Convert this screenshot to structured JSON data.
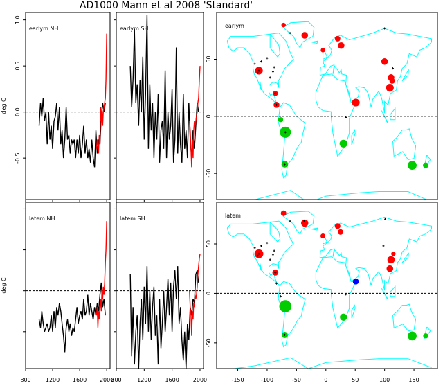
{
  "chart_data": [
    {
      "type": "line",
      "title": "AD1000 Mann et al 2008 'Standard'",
      "panel_label": "earlym NH",
      "ylabel": "deg C",
      "xlim": [
        800,
        2050
      ],
      "ylim": [
        -0.95,
        1.08
      ],
      "yticks": [
        "1.0",
        "0.5",
        "0.0",
        "-0.5"
      ],
      "xticks": [
        "800",
        "1200",
        "1600",
        "2000"
      ],
      "reference_line": 0,
      "series": [
        {
          "color": "#000000",
          "x_start": 1000,
          "x_step": 20,
          "values": [
            -0.15,
            0.1,
            -0.05,
            0.15,
            -0.1,
            0.0,
            -0.35,
            0.0,
            -0.3,
            -0.15,
            -0.4,
            -0.1,
            -0.05,
            0.1,
            -0.2,
            0.05,
            -0.35,
            -0.2,
            -0.5,
            -0.3,
            0.05,
            -0.3,
            -0.25,
            -0.45,
            -0.3,
            -0.35,
            -0.3,
            -0.5,
            -0.3,
            -0.45,
            -0.25,
            -0.5,
            -0.35,
            -0.15,
            -0.45,
            -0.3,
            -0.5,
            -0.4,
            -0.55,
            -0.3,
            -0.5,
            -0.6,
            -0.2,
            -0.45,
            -0.3,
            -0.35,
            -0.05,
            0.1,
            0.0,
            0.1
          ]
        },
        {
          "color": "#ff0000",
          "x_start": 1850,
          "x_step": 10,
          "values": [
            -0.4,
            -0.3,
            -0.35,
            -0.45,
            -0.25,
            -0.35,
            0.05,
            -0.1,
            0.05,
            -0.15,
            0.0,
            0.05,
            0.1,
            0.15,
            0.35,
            0.85
          ]
        }
      ]
    },
    {
      "type": "line",
      "panel_label": "earlym SH",
      "xlim": [
        800,
        2050
      ],
      "ylim": [
        -0.95,
        1.08
      ],
      "xticks": [
        "800",
        "1200",
        "1600",
        "2000"
      ],
      "reference_line": 0,
      "series": [
        {
          "color": "#000000",
          "x_start": 1000,
          "x_step": 20,
          "values": [
            0.5,
            0.05,
            0.35,
            0.9,
            0.1,
            0.3,
            -0.15,
            0.35,
            0.0,
            0.6,
            -0.3,
            0.2,
            1.05,
            -0.4,
            0.3,
            -0.2,
            0.1,
            -0.5,
            0.0,
            -0.3,
            0.2,
            -0.55,
            -0.2,
            -0.1,
            -0.4,
            0.45,
            -0.5,
            0.0,
            -0.3,
            -0.15,
            0.25,
            -0.55,
            -0.3,
            0.7,
            -0.45,
            0.0,
            -0.35,
            -0.55,
            0.2,
            -0.4,
            -0.2,
            -0.5,
            0.1,
            -0.3,
            -0.5,
            -0.2,
            -0.4,
            -0.15,
            0.1,
            0.0
          ]
        },
        {
          "color": "#ff0000",
          "x_start": 1850,
          "x_step": 10,
          "values": [
            -0.1,
            -0.2,
            -0.4,
            -0.6,
            -0.3,
            -0.5,
            -0.2,
            -0.1,
            -0.15,
            -0.1,
            -0.05,
            0.0,
            0.1,
            0.15,
            0.35,
            0.5
          ]
        }
      ]
    },
    {
      "type": "line",
      "panel_label": "latem NH",
      "ylabel": "deg C",
      "xlim": [
        800,
        2050
      ],
      "ylim": [
        -0.95,
        1.08
      ],
      "xticks": [
        "800",
        "1200",
        "1600",
        "2000"
      ],
      "reference_line": 0,
      "series": [
        {
          "color": "#000000",
          "x_start": 1000,
          "x_step": 20,
          "values": [
            -0.35,
            -0.45,
            -0.25,
            -0.4,
            -0.5,
            -0.45,
            -0.4,
            -0.5,
            -0.45,
            -0.3,
            -0.5,
            -0.25,
            -0.45,
            -0.2,
            -0.3,
            -0.15,
            -0.25,
            -0.4,
            -0.55,
            -0.75,
            -0.45,
            -0.35,
            -0.5,
            -0.4,
            -0.55,
            -0.45,
            -0.5,
            -0.35,
            -0.2,
            -0.4,
            -0.3,
            -0.25,
            -0.35,
            -0.1,
            -0.3,
            -0.25,
            -0.05,
            -0.3,
            -0.15,
            -0.25,
            -0.35,
            -0.2,
            -0.3,
            -0.15,
            -0.25,
            -0.05,
            0.1,
            -0.2,
            -0.1,
            -0.3
          ]
        },
        {
          "color": "#ff0000",
          "x_start": 1850,
          "x_step": 10,
          "values": [
            -0.3,
            -0.2,
            -0.45,
            -0.25,
            -0.35,
            -0.2,
            -0.1,
            -0.25,
            0.0,
            -0.1,
            0.05,
            -0.05,
            0.1,
            0.35,
            0.5,
            0.85
          ]
        }
      ]
    },
    {
      "type": "line",
      "panel_label": "latem SH",
      "xlim": [
        800,
        2050
      ],
      "ylim": [
        -0.95,
        1.08
      ],
      "xticks": [
        "800",
        "1200",
        "1600",
        "2000"
      ],
      "reference_line": 0,
      "series": [
        {
          "color": "#000000",
          "x_start": 1000,
          "x_step": 20,
          "values": [
            0.2,
            -0.8,
            -0.2,
            -0.9,
            -0.5,
            -0.3,
            -0.95,
            -0.4,
            -0.1,
            -0.6,
            0.05,
            -0.4,
            0.3,
            -0.5,
            0.0,
            -0.6,
            -0.2,
            0.05,
            -0.55,
            -0.3,
            -0.9,
            -0.1,
            -0.7,
            -0.4,
            0.0,
            -0.5,
            -0.2,
            0.15,
            -0.3,
            0.1,
            -0.5,
            0.05,
            0.25,
            -0.1,
            0.3,
            -0.4,
            -0.2,
            -0.6,
            -0.85,
            -0.5,
            -0.95,
            -0.4,
            -0.6,
            -0.2,
            -0.3,
            -0.1,
            -0.15,
            0.2,
            0.25,
            0.1
          ]
        },
        {
          "color": "#ff0000",
          "x_start": 1850,
          "x_step": 10,
          "values": [
            0.0,
            -0.2,
            -0.3,
            -0.55,
            -0.25,
            -0.35,
            -0.15,
            -0.2,
            -0.05,
            -0.1,
            -0.05,
            0.05,
            0.2,
            0.3,
            0.4,
            0.45
          ]
        }
      ]
    },
    {
      "type": "scatter",
      "panel_label": "earlym",
      "xlim": [
        -186,
        190
      ],
      "ylim": [
        -73,
        91
      ],
      "yticks": [
        "50",
        "0",
        "-50"
      ],
      "xticks": [
        "-150",
        "-100",
        "-50",
        "0",
        "50",
        "100",
        "150"
      ],
      "reference_line": 0,
      "coastline_color": "#00ffff",
      "points": [
        {
          "lon": -72,
          "lat": 80,
          "color": "#ff0000",
          "size": 1
        },
        {
          "lon": -36,
          "lat": 71,
          "color": "#ff0000",
          "size": 2
        },
        {
          "lon": 20,
          "lat": 68,
          "color": "#ff0000",
          "size": 1.5
        },
        {
          "lon": 26,
          "lat": 62,
          "color": "#ff0000",
          "size": 2
        },
        {
          "lon": -5,
          "lat": 58,
          "color": "#ff0000",
          "size": 1
        },
        {
          "lon": 100,
          "lat": 48,
          "color": "#ff0000",
          "size": 2
        },
        {
          "lon": 111,
          "lat": 34,
          "color": "#ff0000",
          "size": 2
        },
        {
          "lon": 113,
          "lat": 31,
          "color": "#ff0000",
          "size": 1.5
        },
        {
          "lon": 109,
          "lat": 25,
          "color": "#ff0000",
          "size": 2.5
        },
        {
          "lon": 51,
          "lat": 12,
          "color": "#ff0000",
          "size": 2.5
        },
        {
          "lon": -114,
          "lat": 40,
          "color": "#ff0000",
          "size": 2.5
        },
        {
          "lon": -86,
          "lat": 20,
          "color": "#ff0000",
          "size": 1.3
        },
        {
          "lon": -84,
          "lat": 10,
          "color": "#ff0000",
          "size": 1.7
        },
        {
          "lon": -77,
          "lat": -3,
          "color": "#00cc00",
          "size": 1.3
        },
        {
          "lon": -69,
          "lat": -14,
          "color": "#00cc00",
          "size": 4
        },
        {
          "lon": 30,
          "lat": -24,
          "color": "#00cc00",
          "size": 2.5
        },
        {
          "lon": -70,
          "lat": -42,
          "color": "#00cc00",
          "size": 2
        },
        {
          "lon": 147,
          "lat": -43,
          "color": "#00cc00",
          "size": 3
        },
        {
          "lon": 170,
          "lat": -43,
          "color": "#00cc00",
          "size": 1.5
        }
      ],
      "crosses": [
        [
          -100,
          51
        ],
        [
          -110,
          48
        ],
        [
          -121,
          46
        ],
        [
          -88,
          43
        ],
        [
          -90,
          39
        ],
        [
          -116,
          38
        ],
        [
          -95,
          34
        ],
        [
          -61,
          73
        ],
        [
          100,
          77
        ],
        [
          114,
          42
        ],
        [
          34,
          -1
        ],
        [
          -69,
          -14
        ],
        [
          -86,
          20
        ],
        [
          -70,
          -42
        ],
        [
          -114,
          40
        ],
        [
          -84,
          10
        ]
      ]
    },
    {
      "type": "scatter",
      "panel_label": "latem",
      "xlim": [
        -186,
        190
      ],
      "ylim": [
        -76,
        92
      ],
      "yticks": [
        "50",
        "0",
        "-50"
      ],
      "xticks": [
        "-150",
        "-100",
        "-50",
        "0",
        "50",
        "100",
        "150"
      ],
      "reference_line": 0,
      "coastline_color": "#00ffff",
      "points": [
        {
          "lon": -72,
          "lat": 81,
          "color": "#ff0000",
          "size": 1.5
        },
        {
          "lon": -36,
          "lat": 71,
          "color": "#ff0000",
          "size": 2.3
        },
        {
          "lon": 20,
          "lat": 68,
          "color": "#ff0000",
          "size": 1.5
        },
        {
          "lon": 25,
          "lat": 62,
          "color": "#ff0000",
          "size": 1.5
        },
        {
          "lon": -5,
          "lat": 58,
          "color": "#ff0000",
          "size": 1.2
        },
        {
          "lon": -114,
          "lat": 40,
          "color": "#ff0000",
          "size": 3
        },
        {
          "lon": -86,
          "lat": 21,
          "color": "#ff0000",
          "size": 1.7
        },
        {
          "lon": 111,
          "lat": 34,
          "color": "#ff0000",
          "size": 2.3
        },
        {
          "lon": 115,
          "lat": 40,
          "color": "#ff0000",
          "size": 1
        },
        {
          "lon": 109,
          "lat": 25,
          "color": "#ff0000",
          "size": 2
        },
        {
          "lon": 51,
          "lat": 12,
          "color": "#0000ff",
          "size": 1.7
        },
        {
          "lon": -69,
          "lat": -13,
          "color": "#00cc00",
          "size": 4.5
        },
        {
          "lon": 30,
          "lat": -24,
          "color": "#00cc00",
          "size": 2.2
        },
        {
          "lon": -70,
          "lat": -42,
          "color": "#00cc00",
          "size": 1.8
        },
        {
          "lon": 147,
          "lat": -43,
          "color": "#00cc00",
          "size": 3
        },
        {
          "lon": 170,
          "lat": -43,
          "color": "#00cc00",
          "size": 1.3
        }
      ],
      "crosses": [
        [
          -100,
          51
        ],
        [
          -110,
          48
        ],
        [
          -121,
          46
        ],
        [
          -88,
          43
        ],
        [
          -90,
          39
        ],
        [
          -116,
          38
        ],
        [
          -95,
          34
        ],
        [
          -61,
          73
        ],
        [
          101,
          75
        ],
        [
          98,
          48
        ],
        [
          34,
          -1
        ],
        [
          -84,
          10
        ],
        [
          -77,
          -3
        ],
        [
          -86,
          21
        ],
        [
          -70,
          -42
        ],
        [
          -114,
          40
        ],
        [
          -37,
          73
        ]
      ]
    }
  ]
}
